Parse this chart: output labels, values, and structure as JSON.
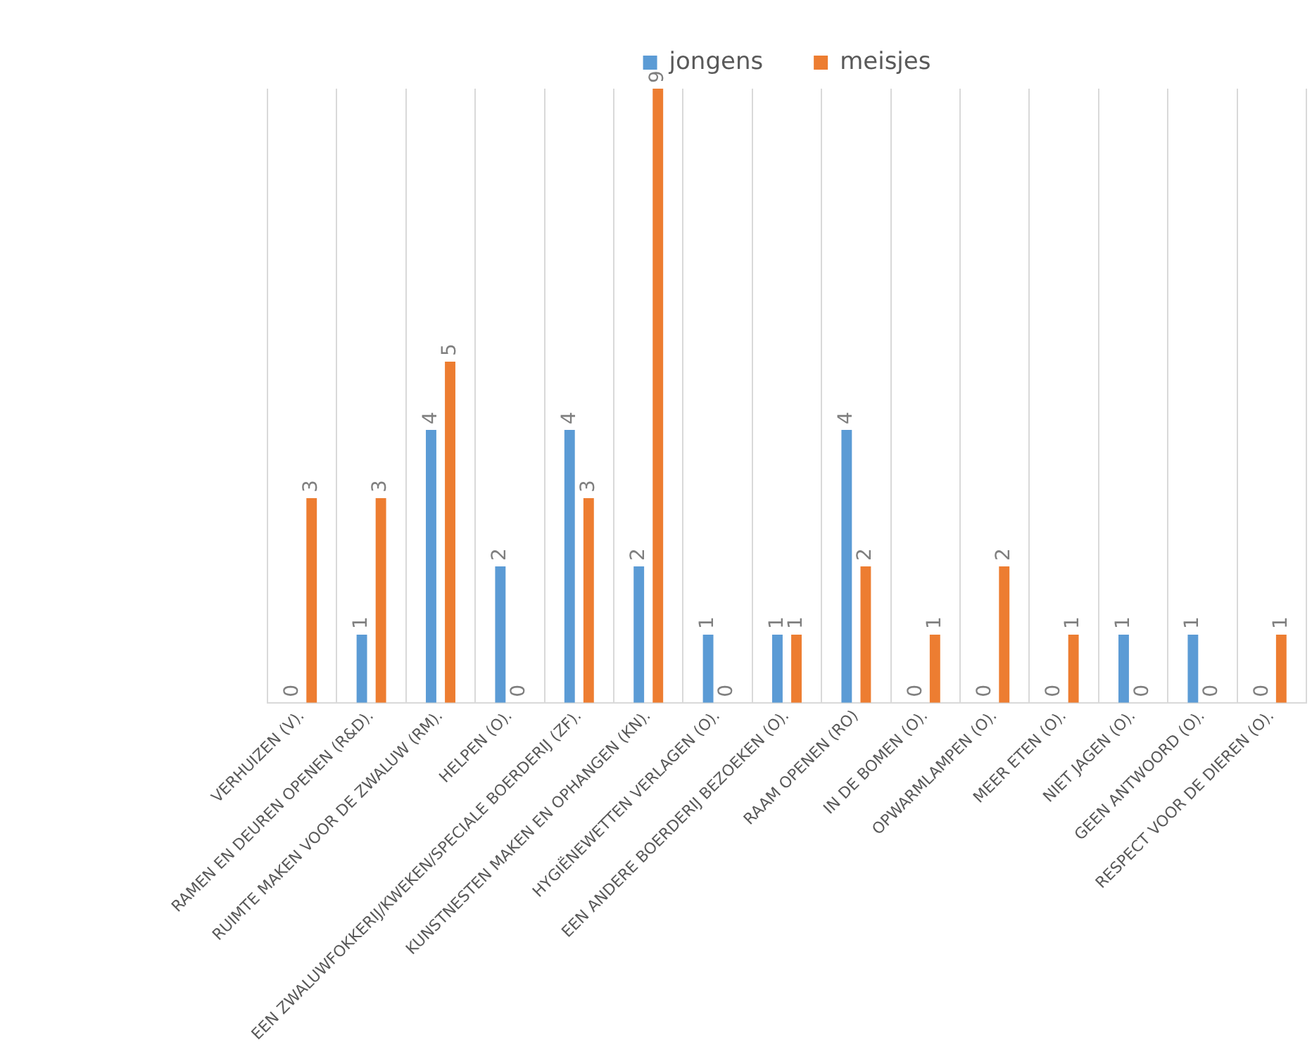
{
  "chart_data": {
    "type": "bar",
    "categories": [
      "VERHUIZEN (V).",
      "RAMEN EN DEUREN OPENEN (R&D).",
      "RUIMTE MAKEN VOOR DE ZWALUW (RM).",
      "HELPEN (O).",
      "EEN ZWALUWFOKKERIJ/KWEKEN/SPECIALE BOERDERIJ (ZF).",
      "KUNSTNESTEN MAKEN EN OPHANGEN (KN).",
      "HYGIËNEWETTEN VERLAGEN (O).",
      "EEN ANDERE BOERDERIJ BEZOEKEN (O).",
      "RAAM OPENEN (RO)",
      "IN DE BOMEN (O).",
      "OPWARMLAMPEN (O).",
      "MEER ETEN (O).",
      "NIET JAGEN (O).",
      "GEEN ANTWOORD (O).",
      "RESPECT VOOR DE DIEREN (O)."
    ],
    "series": [
      {
        "name": "jongens",
        "color": "#5b9bd5",
        "values": [
          0,
          1,
          4,
          2,
          4,
          2,
          1,
          1,
          4,
          0,
          0,
          0,
          1,
          1,
          0
        ]
      },
      {
        "name": "meisjes",
        "color": "#ed7d31",
        "values": [
          3,
          3,
          5,
          0,
          3,
          9,
          0,
          1,
          2,
          1,
          2,
          1,
          0,
          0,
          1
        ]
      }
    ],
    "ylim": [
      0,
      9
    ],
    "data_labels": true,
    "grid": "x",
    "legend": "top",
    "tick_labels": "x"
  }
}
